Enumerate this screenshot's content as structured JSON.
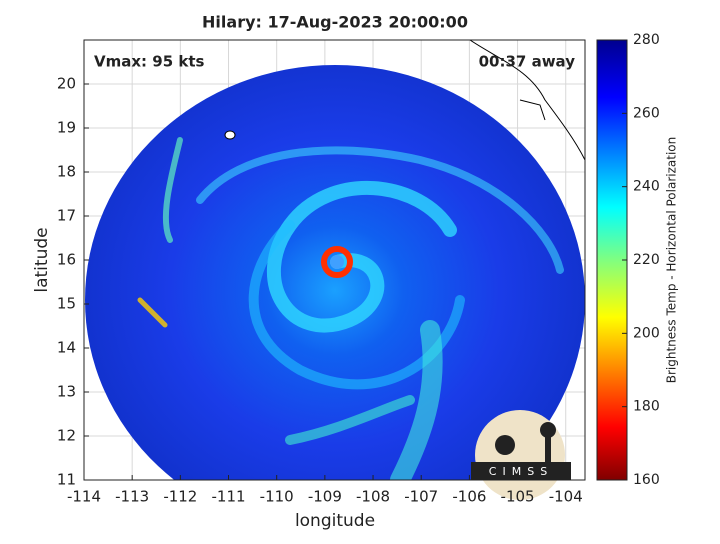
{
  "chart_data": {
    "type": "map",
    "title": "Hilary: 17-Aug-2023 20:00:00",
    "annotations": [
      "Vmax: 95 kts",
      "00:37 away"
    ],
    "x_label": "longitude",
    "y_label": "latitude",
    "xlim": [
      -114,
      -103.6
    ],
    "xticks": [
      -114,
      -113,
      -112,
      -111,
      -110,
      -109,
      -108,
      -107,
      -106,
      -105,
      -104
    ],
    "ylim": [
      11,
      21
    ],
    "yticks": [
      11,
      12,
      13,
      14,
      15,
      16,
      17,
      18,
      19,
      20
    ],
    "grid": true,
    "colorbar": {
      "label": "Brightness Temp - Horizontal Polarization",
      "lim": [
        160,
        280
      ],
      "ticks": [
        160,
        180,
        200,
        220,
        240,
        260,
        280
      ]
    },
    "logo": "CIMSS"
  }
}
